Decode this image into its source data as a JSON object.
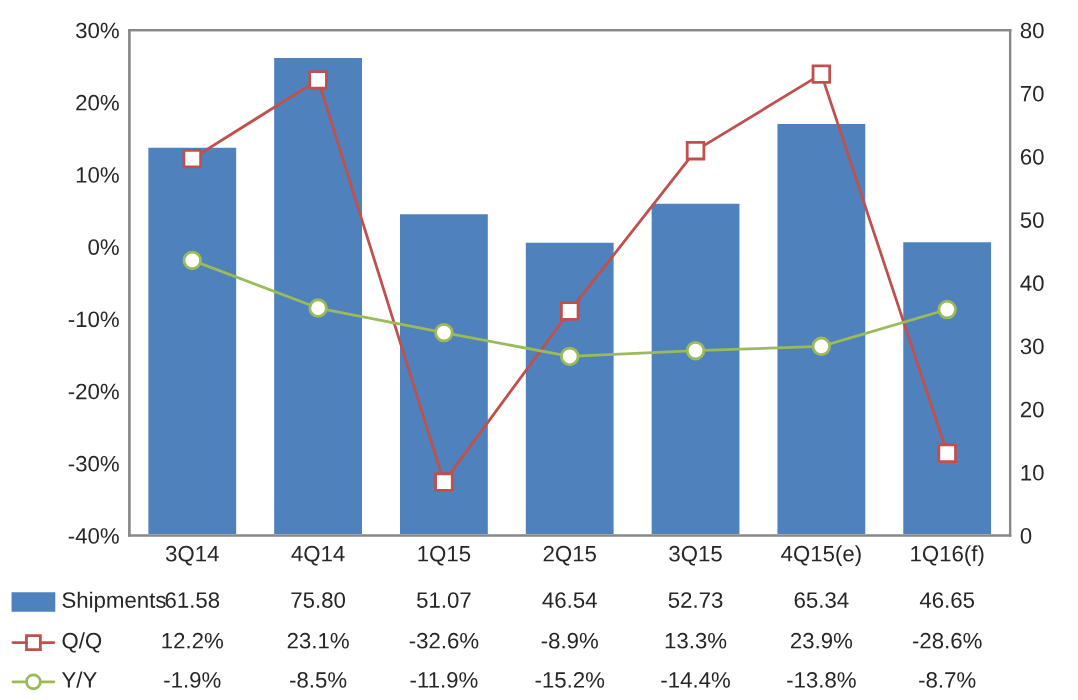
{
  "chart_data": {
    "type": "bar",
    "categories": [
      "3Q14",
      "4Q14",
      "1Q15",
      "2Q15",
      "3Q15",
      "4Q15(e)",
      "1Q16(f)"
    ],
    "series": [
      {
        "name": "Shipments",
        "axis": "y2",
        "color": "#4f81bd",
        "values": [
          61.58,
          75.8,
          51.07,
          46.54,
          52.73,
          65.34,
          46.65
        ],
        "value_labels": [
          "61.58",
          "75.80",
          "51.07",
          "46.54",
          "52.73",
          "65.34",
          "46.65"
        ]
      },
      {
        "name": "Q/Q",
        "type": "line",
        "axis": "y",
        "color": "#c0504d",
        "marker": "square",
        "values": [
          12.2,
          23.1,
          -32.6,
          -8.9,
          13.3,
          23.9,
          -28.6
        ],
        "value_labels": [
          "12.2%",
          "23.1%",
          "-32.6%",
          "-8.9%",
          "13.3%",
          "23.9%",
          "-28.6%"
        ]
      },
      {
        "name": "Y/Y",
        "type": "line",
        "axis": "y",
        "color": "#9bbb59",
        "marker": "circle",
        "values": [
          -1.9,
          -8.5,
          -11.9,
          -15.2,
          -14.4,
          -13.8,
          -8.7
        ],
        "value_labels": [
          "-1.9%",
          "-8.5%",
          "-11.9%",
          "-15.2%",
          "-14.4%",
          "-13.8%",
          "-8.7%"
        ]
      }
    ],
    "ylim": [
      -40,
      30
    ],
    "yticks": [
      {
        "value": -40,
        "label": "-40%"
      },
      {
        "value": -30,
        "label": "-30%"
      },
      {
        "value": -20,
        "label": "-20%"
      },
      {
        "value": -10,
        "label": "-10%"
      },
      {
        "value": 0,
        "label": "0%"
      },
      {
        "value": 10,
        "label": "10%"
      },
      {
        "value": 20,
        "label": "20%"
      },
      {
        "value": 30,
        "label": "30%"
      }
    ],
    "y2lim": [
      0,
      80
    ],
    "y2ticks": [
      0,
      10,
      20,
      30,
      40,
      50,
      60,
      70,
      80
    ],
    "legend": "bottom",
    "grid": false
  }
}
